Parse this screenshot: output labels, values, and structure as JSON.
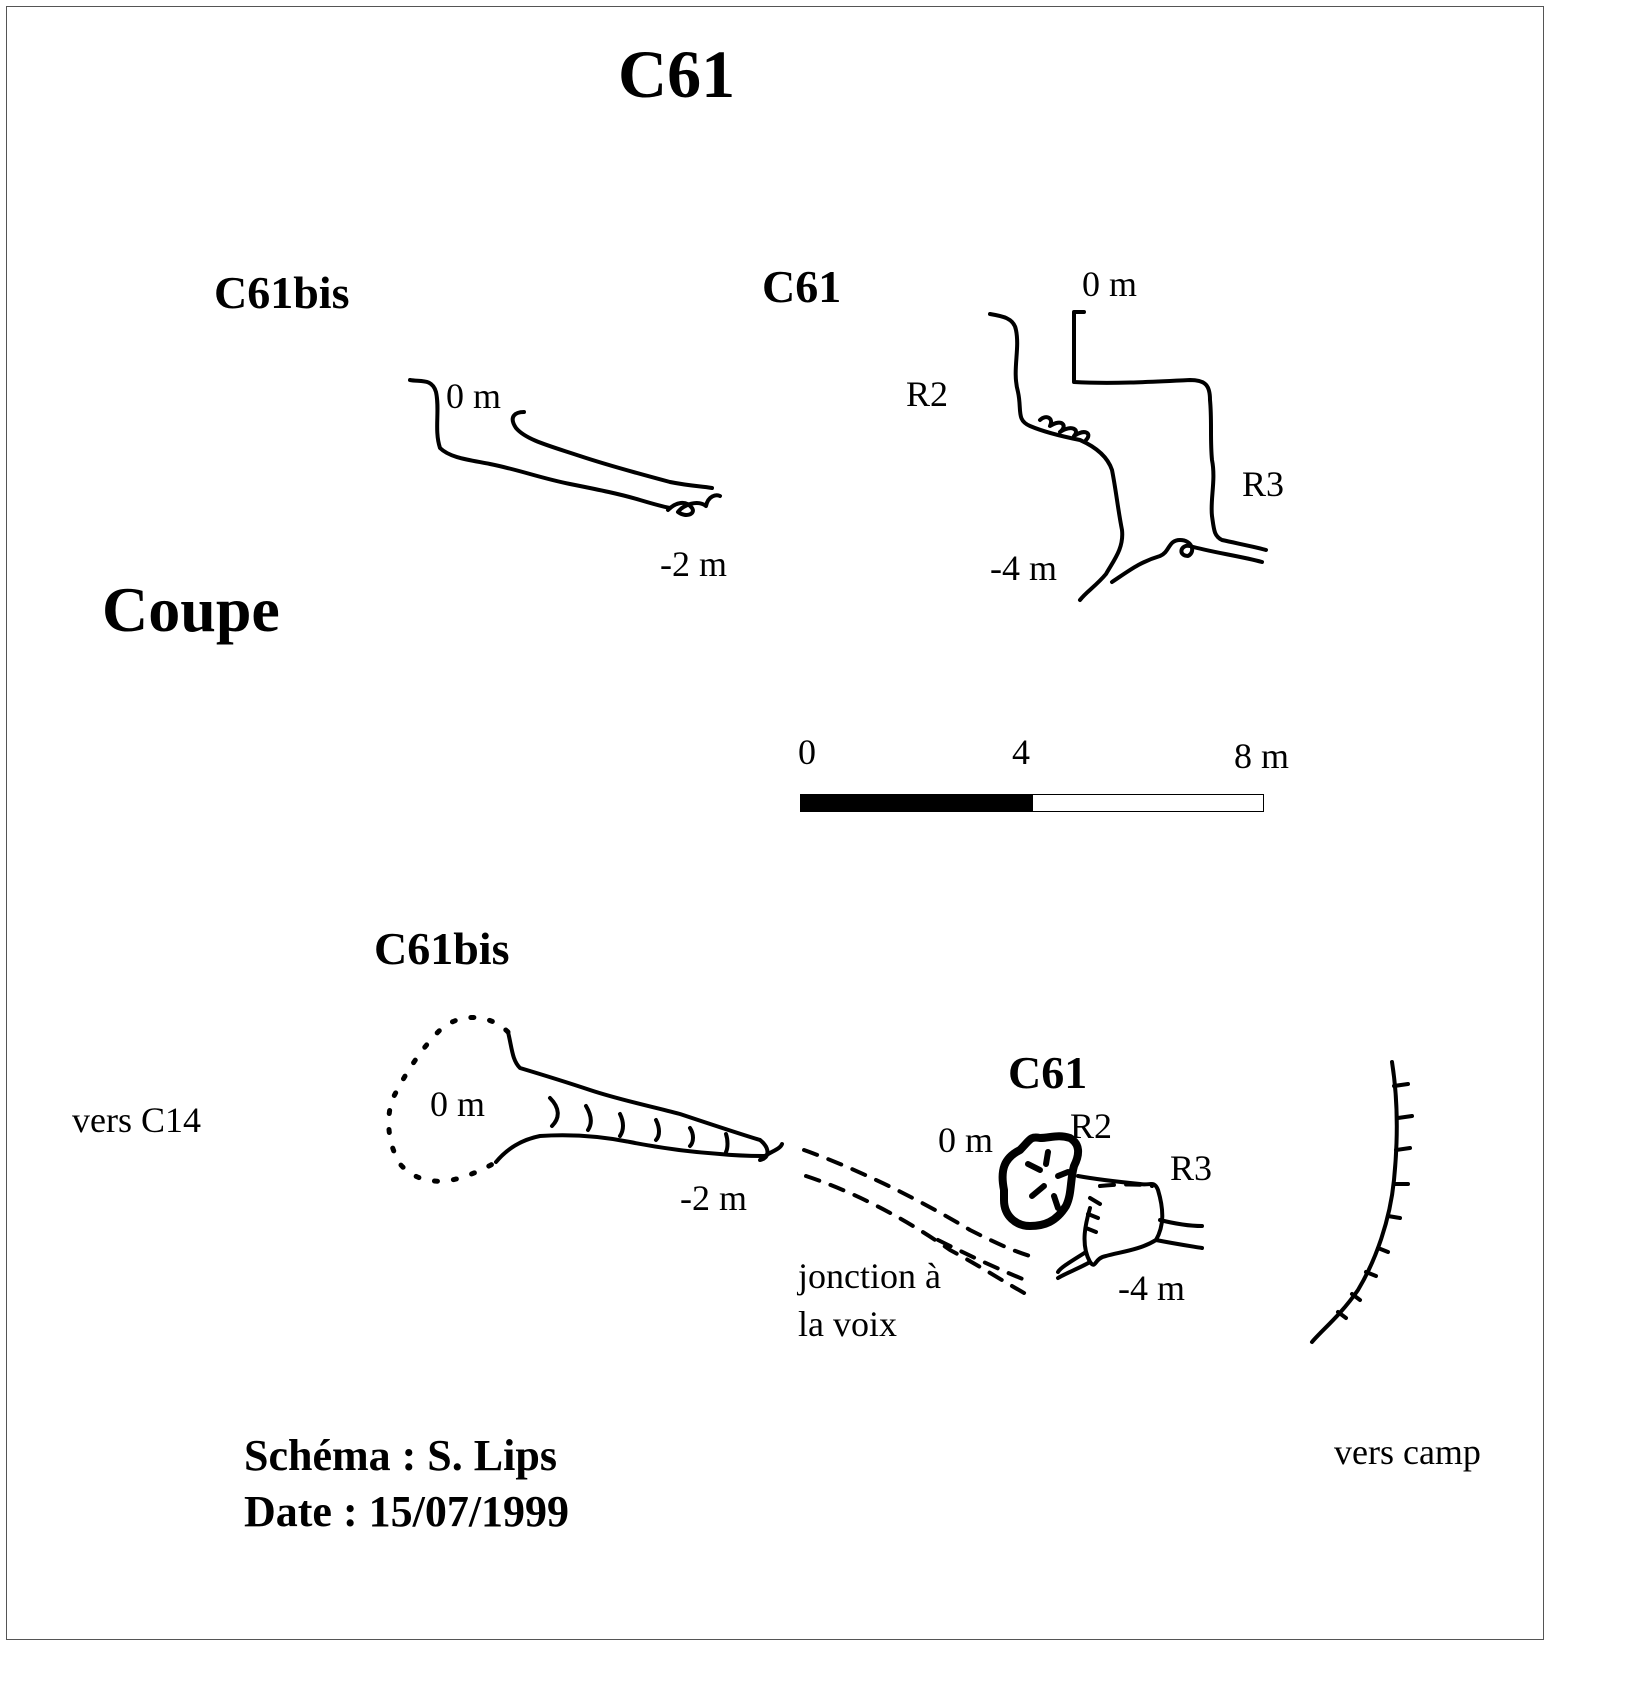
{
  "title": "C61",
  "coupe_label": "Coupe",
  "section": {
    "c61bis": {
      "name": "C61bis",
      "top_depth": "0 m",
      "bottom_depth": "-2 m"
    },
    "c61": {
      "name": "C61",
      "top_depth": "0 m",
      "pitch_a": "R2",
      "pitch_b": "R3",
      "bottom_depth": "-4 m"
    }
  },
  "scale_bar": {
    "ticks": [
      "0",
      "4",
      "8 m"
    ]
  },
  "plan": {
    "c61bis": {
      "name": "C61bis",
      "top_depth": "0 m",
      "bottom_depth": "-2 m"
    },
    "c61": {
      "name": "C61",
      "top_depth": "0 m",
      "pitch_a": "R2",
      "pitch_b": "R3",
      "bottom_depth": "-4 m"
    },
    "direction_west": "vers C14",
    "direction_east": "vers camp",
    "junction_note": [
      "jonction à",
      "la voix"
    ]
  },
  "credits": {
    "author": "Schéma : S. Lips",
    "date": "Date : 15/07/1999"
  }
}
